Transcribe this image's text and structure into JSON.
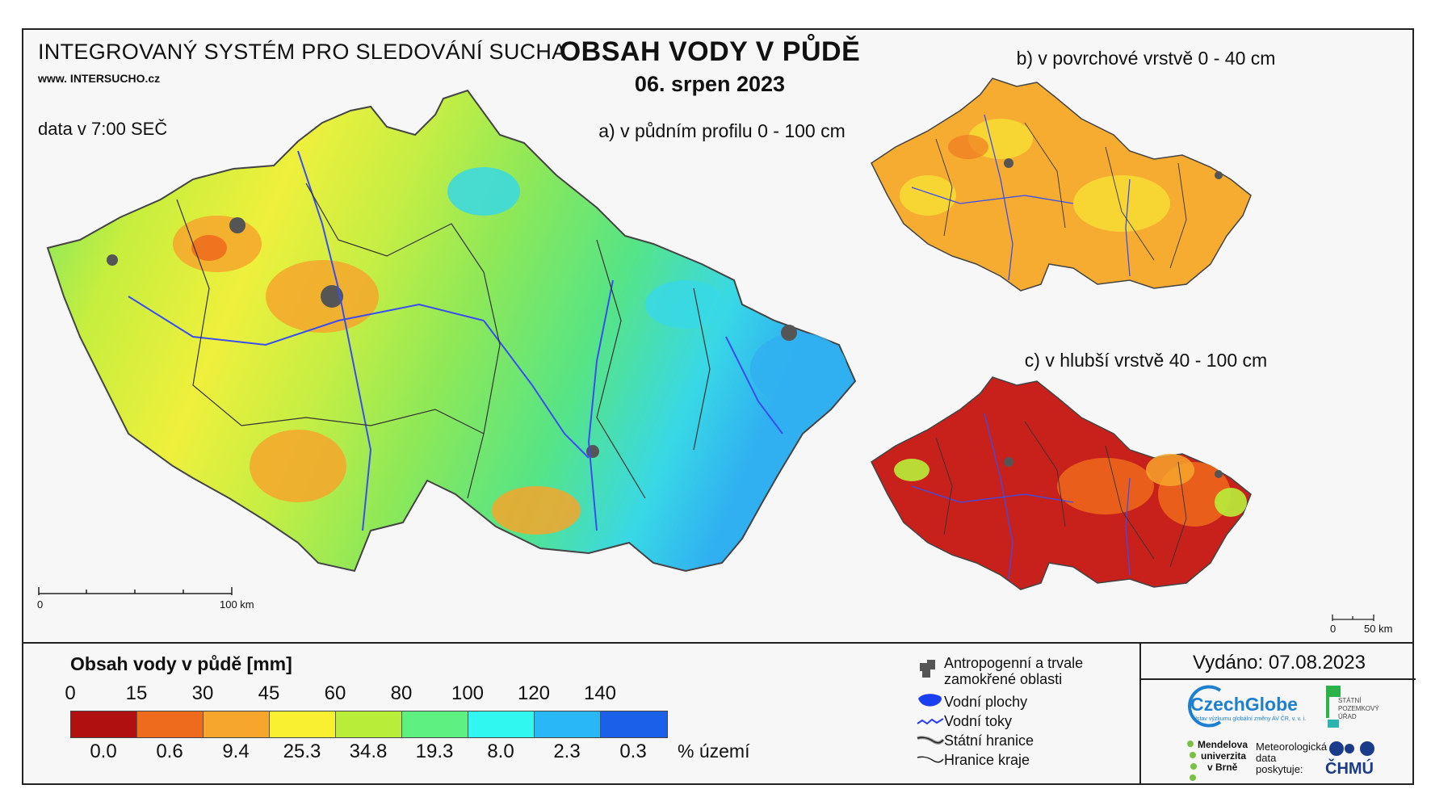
{
  "header": {
    "system_title": "INTEGROVANÝ SYSTÉM PRO SLEDOVÁNÍ SUCHA",
    "url": "www. INTERSUCHO.cz",
    "data_time": "data v 7:00 SEČ",
    "main_title": "OBSAH VODY V PŮDĚ",
    "date": "06. srpen 2023"
  },
  "maps": {
    "a_caption": "a) v půdním profilu 0 - 100 cm",
    "b_caption": "b) v povrchové vrstvě 0 - 40 cm",
    "c_caption": "c) v hlubší vrstvě 40 - 100 cm",
    "scale_main": {
      "start": "0",
      "end": "100 km"
    },
    "scale_small": {
      "start": "0",
      "end": "50 km"
    }
  },
  "legend": {
    "title": "Obsah vody v půdě  [mm]",
    "ticks": [
      "0",
      "15",
      "30",
      "45",
      "60",
      "80",
      "100",
      "120",
      "140"
    ],
    "colors": [
      "#b01010",
      "#ee6a1c",
      "#f6a62c",
      "#f8f030",
      "#b8ee3a",
      "#5ef080",
      "#30f8f0",
      "#28b8f8",
      "#1a60e8"
    ],
    "percentages": [
      "0.0",
      "0.6",
      "9.4",
      "25.3",
      "34.8",
      "19.3",
      "8.0",
      "2.3",
      "0.3"
    ],
    "percent_unit": "% území"
  },
  "symbols": [
    {
      "icon": "urban-area-icon",
      "label_1": "Antropogenní a trvale",
      "label_2": "zamokřené oblasti"
    },
    {
      "icon": "water-body-icon",
      "label_1": "Vodní plochy"
    },
    {
      "icon": "river-icon",
      "label_1": "Vodní toky"
    },
    {
      "icon": "state-border-icon",
      "label_1": "Státní hranice"
    },
    {
      "icon": "region-border-icon",
      "label_1": "Hranice kraje"
    }
  ],
  "issued": "Vydáno: 07.08.2023",
  "logos": {
    "czechglobe": "CzechGlobe",
    "czechglobe_sub": "Ústav výzkumu globální změny AV ČR, v. v. i.",
    "spu_1": "STÁTNÍ",
    "spu_2": "POZEMKOVÝ",
    "spu_3": "ÚŘAD",
    "mendelu_1": "Mendelova",
    "mendelu_2": "univerzita",
    "mendelu_3": "v Brně",
    "meteo_1": "Meteorologická",
    "meteo_2": "data",
    "meteo_3": "poskytuje:",
    "chmu": "ČHMÚ"
  }
}
